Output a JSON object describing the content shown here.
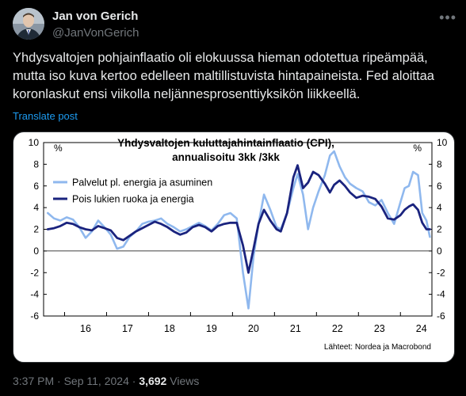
{
  "author": {
    "name": "Jan von Gerich",
    "handle": "@JanVonGerich"
  },
  "tweet": {
    "text": "Yhdysvaltojen pohjainflaatio oli elokuussa hieman odotettua ripeämpää, mutta iso kuva kertoo edelleen maltillistuvista hintapaineista. Fed aloittaa koronlaskut ensi viikolla neljännesprosenttiyksikön liikkeellä.",
    "translate_label": "Translate post"
  },
  "footer": {
    "time": "3:37 PM",
    "date": "Sep 11, 2024",
    "views_count": "3,692",
    "views_label": "Views"
  },
  "icons": {
    "more": "more-icon"
  },
  "chart_data": {
    "type": "line",
    "title": "Yhdysvaltojen kuluttajahintainflaatio (CPI),",
    "subtitle": "annualisoitu 3kk /3kk",
    "unit_left": "%",
    "unit_right": "%",
    "source": "Lähteet: Nordea ja Macrobond",
    "ylim": [
      -6,
      10
    ],
    "yticks": [
      -6,
      -4,
      -2,
      0,
      2,
      4,
      6,
      8,
      10
    ],
    "xlim": [
      2015.5,
      2024.75
    ],
    "xticks": [
      {
        "label": "16",
        "x": 2016.5
      },
      {
        "label": "17",
        "x": 2017.5
      },
      {
        "label": "18",
        "x": 2018.5
      },
      {
        "label": "19",
        "x": 2019.5
      },
      {
        "label": "20",
        "x": 2020.5
      },
      {
        "label": "21",
        "x": 2021.5
      },
      {
        "label": "22",
        "x": 2022.5
      },
      {
        "label": "23",
        "x": 2023.5
      },
      {
        "label": "24",
        "x": 2024.5
      }
    ],
    "legend": "top-left",
    "series": [
      {
        "name": "Palvelut pl. energia ja asuminen",
        "color": "#8fb8ee",
        "points": [
          [
            2015.6,
            3.5
          ],
          [
            2015.75,
            3.0
          ],
          [
            2015.9,
            2.8
          ],
          [
            2016.05,
            3.1
          ],
          [
            2016.2,
            2.9
          ],
          [
            2016.35,
            2.2
          ],
          [
            2016.5,
            1.2
          ],
          [
            2016.65,
            1.8
          ],
          [
            2016.8,
            2.8
          ],
          [
            2016.95,
            2.2
          ],
          [
            2017.1,
            1.5
          ],
          [
            2017.25,
            0.2
          ],
          [
            2017.4,
            0.4
          ],
          [
            2017.55,
            1.3
          ],
          [
            2017.7,
            1.8
          ],
          [
            2017.85,
            2.5
          ],
          [
            2018.0,
            2.7
          ],
          [
            2018.15,
            2.8
          ],
          [
            2018.3,
            3.0
          ],
          [
            2018.45,
            2.5
          ],
          [
            2018.6,
            2.2
          ],
          [
            2018.75,
            1.8
          ],
          [
            2018.9,
            2.0
          ],
          [
            2019.05,
            2.3
          ],
          [
            2019.2,
            2.6
          ],
          [
            2019.35,
            2.3
          ],
          [
            2019.5,
            1.9
          ],
          [
            2019.65,
            2.5
          ],
          [
            2019.8,
            3.3
          ],
          [
            2019.95,
            3.5
          ],
          [
            2020.1,
            3.0
          ],
          [
            2020.25,
            -2.0
          ],
          [
            2020.38,
            -5.3
          ],
          [
            2020.5,
            -0.5
          ],
          [
            2020.62,
            2.5
          ],
          [
            2020.75,
            5.2
          ],
          [
            2020.9,
            3.8
          ],
          [
            2021.05,
            2.2
          ],
          [
            2021.15,
            2.0
          ],
          [
            2021.3,
            3.5
          ],
          [
            2021.45,
            5.8
          ],
          [
            2021.55,
            7.1
          ],
          [
            2021.68,
            5.2
          ],
          [
            2021.8,
            2.0
          ],
          [
            2021.92,
            4.0
          ],
          [
            2022.05,
            5.5
          ],
          [
            2022.2,
            7.0
          ],
          [
            2022.32,
            8.8
          ],
          [
            2022.42,
            9.2
          ],
          [
            2022.55,
            7.8
          ],
          [
            2022.68,
            6.8
          ],
          [
            2022.8,
            6.2
          ],
          [
            2022.95,
            5.8
          ],
          [
            2023.1,
            5.5
          ],
          [
            2023.25,
            4.5
          ],
          [
            2023.4,
            4.2
          ],
          [
            2023.55,
            4.7
          ],
          [
            2023.7,
            3.5
          ],
          [
            2023.85,
            2.5
          ],
          [
            2024.0,
            4.5
          ],
          [
            2024.1,
            5.8
          ],
          [
            2024.2,
            6.0
          ],
          [
            2024.3,
            7.3
          ],
          [
            2024.42,
            7.0
          ],
          [
            2024.52,
            3.5
          ],
          [
            2024.62,
            2.8
          ],
          [
            2024.7,
            1.3
          ]
        ]
      },
      {
        "name": "Pois lukien ruoka ja energia",
        "color": "#1a237e",
        "points": [
          [
            2015.6,
            2.0
          ],
          [
            2015.75,
            2.1
          ],
          [
            2015.9,
            2.3
          ],
          [
            2016.05,
            2.6
          ],
          [
            2016.2,
            2.5
          ],
          [
            2016.35,
            2.2
          ],
          [
            2016.5,
            2.0
          ],
          [
            2016.65,
            1.9
          ],
          [
            2016.8,
            2.3
          ],
          [
            2016.95,
            2.1
          ],
          [
            2017.1,
            1.9
          ],
          [
            2017.25,
            1.2
          ],
          [
            2017.4,
            1.0
          ],
          [
            2017.55,
            1.4
          ],
          [
            2017.7,
            1.8
          ],
          [
            2017.85,
            2.1
          ],
          [
            2018.0,
            2.4
          ],
          [
            2018.15,
            2.7
          ],
          [
            2018.3,
            2.5
          ],
          [
            2018.45,
            2.2
          ],
          [
            2018.6,
            1.8
          ],
          [
            2018.75,
            1.5
          ],
          [
            2018.9,
            1.7
          ],
          [
            2019.05,
            2.2
          ],
          [
            2019.2,
            2.4
          ],
          [
            2019.35,
            2.2
          ],
          [
            2019.5,
            1.8
          ],
          [
            2019.65,
            2.3
          ],
          [
            2019.8,
            2.5
          ],
          [
            2019.95,
            2.6
          ],
          [
            2020.1,
            2.6
          ],
          [
            2020.25,
            0.5
          ],
          [
            2020.38,
            -2.0
          ],
          [
            2020.5,
            0.2
          ],
          [
            2020.62,
            2.5
          ],
          [
            2020.75,
            3.8
          ],
          [
            2020.9,
            2.8
          ],
          [
            2021.05,
            2.0
          ],
          [
            2021.15,
            1.8
          ],
          [
            2021.3,
            3.5
          ],
          [
            2021.45,
            6.8
          ],
          [
            2021.55,
            7.9
          ],
          [
            2021.68,
            5.8
          ],
          [
            2021.8,
            6.3
          ],
          [
            2021.92,
            7.3
          ],
          [
            2022.05,
            7.0
          ],
          [
            2022.2,
            6.2
          ],
          [
            2022.32,
            5.4
          ],
          [
            2022.42,
            6.1
          ],
          [
            2022.55,
            6.5
          ],
          [
            2022.68,
            6.0
          ],
          [
            2022.8,
            5.4
          ],
          [
            2022.95,
            4.9
          ],
          [
            2023.1,
            5.1
          ],
          [
            2023.25,
            5.0
          ],
          [
            2023.4,
            4.8
          ],
          [
            2023.55,
            4.1
          ],
          [
            2023.7,
            3.0
          ],
          [
            2023.85,
            2.9
          ],
          [
            2024.0,
            3.3
          ],
          [
            2024.1,
            3.8
          ],
          [
            2024.2,
            4.1
          ],
          [
            2024.3,
            4.3
          ],
          [
            2024.42,
            3.8
          ],
          [
            2024.52,
            2.6
          ],
          [
            2024.62,
            2.0
          ],
          [
            2024.7,
            2.0
          ]
        ]
      }
    ]
  }
}
